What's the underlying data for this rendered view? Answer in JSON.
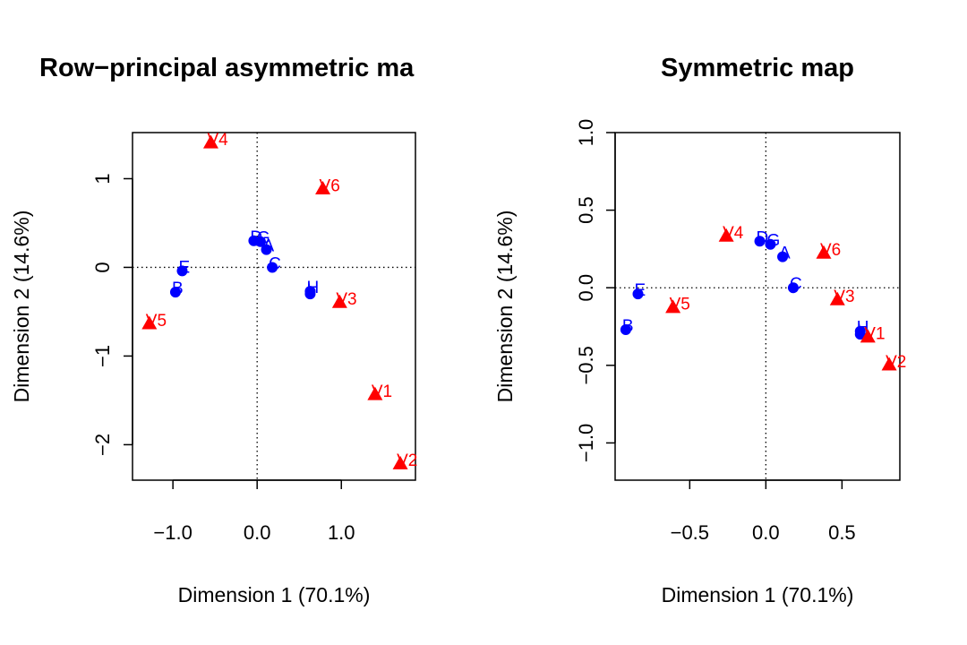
{
  "chart_data": [
    {
      "type": "scatter",
      "title": "Row−principal asymmetric ma",
      "xlabel": "Dimension 1 (70.1%)",
      "ylabel": "Dimension 2 (14.6%)",
      "xlim": [
        -1.48,
        1.88
      ],
      "ylim": [
        -2.4,
        1.52
      ],
      "xticks": [
        -1.0,
        0.0,
        1.0
      ],
      "xtick_labels": [
        "−1.0",
        "0.0",
        "1.0"
      ],
      "yticks": [
        -2,
        -1,
        0,
        1
      ],
      "ytick_labels": [
        "−2",
        "−1",
        "0",
        "1"
      ],
      "reference_lines": {
        "x": 0,
        "y": 0,
        "style": "dotted"
      },
      "series": [
        {
          "marker": "circle",
          "color": "#0000ff",
          "points": [
            {
              "label": "D",
              "x": -0.04,
              "y": 0.3
            },
            {
              "label": "G",
              "x": 0.04,
              "y": 0.29
            },
            {
              "label": "A",
              "x": 0.11,
              "y": 0.2
            },
            {
              "label": "C",
              "x": 0.18,
              "y": 0.0
            },
            {
              "label": "E",
              "x": -0.89,
              "y": -0.04
            },
            {
              "label": "B",
              "x": -0.97,
              "y": -0.28
            },
            {
              "label": "H",
              "x": 0.63,
              "y": -0.27
            },
            {
              "label": "I",
              "x": 0.63,
              "y": -0.3
            }
          ]
        },
        {
          "marker": "triangle",
          "color": "#ff0000",
          "points": [
            {
              "label": "V4",
              "x": -0.55,
              "y": 1.4
            },
            {
              "label": "V6",
              "x": 0.78,
              "y": 0.88
            },
            {
              "label": "V3",
              "x": 0.98,
              "y": -0.4
            },
            {
              "label": "V5",
              "x": -1.28,
              "y": -0.64
            },
            {
              "label": "V1",
              "x": 1.4,
              "y": -1.44
            },
            {
              "label": "V2",
              "x": 1.7,
              "y": -2.22
            }
          ]
        }
      ]
    },
    {
      "type": "scatter",
      "title": "Symmetric map",
      "xlabel": "Dimension 1 (70.1%)",
      "ylabel": "Dimension 2 (14.6%)",
      "xlim": [
        -0.99,
        0.88
      ],
      "ylim": [
        -1.24,
        1.0
      ],
      "xticks": [
        -0.5,
        0.0,
        0.5
      ],
      "xtick_labels": [
        "−0.5",
        "0.0",
        "0.5"
      ],
      "yticks": [
        -1.0,
        -0.5,
        0.0,
        0.5,
        1.0
      ],
      "ytick_labels": [
        "−1.0",
        "−0.5",
        "0.0",
        "0.5",
        "1.0"
      ],
      "reference_lines": {
        "x": 0,
        "y": 0,
        "style": "dotted"
      },
      "series": [
        {
          "marker": "circle",
          "color": "#0000ff",
          "points": [
            {
              "label": "D",
              "x": -0.04,
              "y": 0.3
            },
            {
              "label": "G",
              "x": 0.03,
              "y": 0.28
            },
            {
              "label": "A",
              "x": 0.11,
              "y": 0.2
            },
            {
              "label": "C",
              "x": 0.18,
              "y": 0.0
            },
            {
              "label": "E",
              "x": -0.84,
              "y": -0.04
            },
            {
              "label": "B",
              "x": -0.92,
              "y": -0.27
            },
            {
              "label": "H",
              "x": 0.62,
              "y": -0.28
            },
            {
              "label": "I",
              "x": 0.62,
              "y": -0.3
            }
          ]
        },
        {
          "marker": "triangle",
          "color": "#ff0000",
          "points": [
            {
              "label": "V4",
              "x": -0.26,
              "y": 0.33
            },
            {
              "label": "V6",
              "x": 0.38,
              "y": 0.22
            },
            {
              "label": "V3",
              "x": 0.47,
              "y": -0.08
            },
            {
              "label": "V5",
              "x": -0.61,
              "y": -0.13
            },
            {
              "label": "V1",
              "x": 0.67,
              "y": -0.32
            },
            {
              "label": "V2",
              "x": 0.81,
              "y": -0.5
            }
          ]
        }
      ]
    }
  ]
}
